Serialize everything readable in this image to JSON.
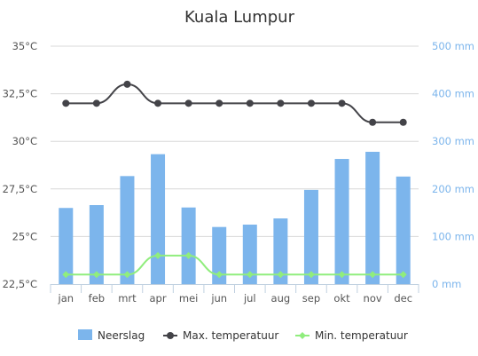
{
  "chart_data": {
    "type": "bar",
    "title": "Kuala Lumpur",
    "categories": [
      "jan",
      "feb",
      "mrt",
      "apr",
      "mei",
      "jun",
      "jul",
      "aug",
      "sep",
      "okt",
      "nov",
      "dec"
    ],
    "y_left": {
      "min": 22.5,
      "max": 35,
      "ticks": [
        "22,5°C",
        "25°C",
        "27,5°C",
        "30°C",
        "32,5°C",
        "35°C"
      ]
    },
    "y_right": {
      "min": 0,
      "max": 500,
      "ticks": [
        "0 mm",
        "100 mm",
        "200 mm",
        "300 mm",
        "400 mm",
        "500 mm"
      ]
    },
    "grid": true,
    "legend_position": "bottom",
    "series": [
      {
        "name": "Neerslag",
        "type": "bar",
        "axis": "right",
        "color": "#7cb5ec",
        "values": [
          160,
          166,
          227,
          273,
          161,
          120,
          125,
          138,
          198,
          263,
          278,
          226
        ]
      },
      {
        "name": "Max. temperatuur",
        "type": "line",
        "axis": "left",
        "color": "#434348",
        "values": [
          32,
          32,
          33,
          32,
          32,
          32,
          32,
          32,
          32,
          32,
          31,
          31
        ]
      },
      {
        "name": "Min. temperatuur",
        "type": "line",
        "axis": "left",
        "color": "#90ed7d",
        "values": [
          23,
          23,
          23,
          24,
          24,
          23,
          23,
          23,
          23,
          23,
          23,
          23
        ]
      }
    ]
  }
}
